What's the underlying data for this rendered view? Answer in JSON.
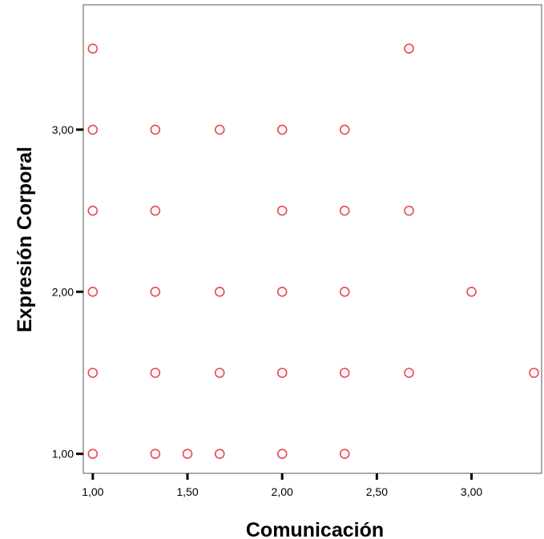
{
  "chart_data": {
    "type": "scatter",
    "xlabel": "Comunicación",
    "ylabel": "Expresión Corporal",
    "xlim": [
      0.95,
      3.37
    ],
    "ylim": [
      0.88,
      3.77
    ],
    "x_ticks": [
      {
        "value": 1.0,
        "label": "1,00"
      },
      {
        "value": 1.5,
        "label": "1,50"
      },
      {
        "value": 2.0,
        "label": "2,00"
      },
      {
        "value": 2.5,
        "label": "2,50"
      },
      {
        "value": 3.0,
        "label": "3,00"
      }
    ],
    "y_ticks": [
      {
        "value": 1.0,
        "label": "1,00"
      },
      {
        "value": 2.0,
        "label": "2,00"
      },
      {
        "value": 3.0,
        "label": "3,00"
      }
    ],
    "grid": false,
    "legend": "none",
    "marker_color": "#e8484f",
    "points": [
      {
        "x": 1.0,
        "y": 3.5
      },
      {
        "x": 2.67,
        "y": 3.5
      },
      {
        "x": 1.0,
        "y": 3.0
      },
      {
        "x": 1.33,
        "y": 3.0
      },
      {
        "x": 1.67,
        "y": 3.0
      },
      {
        "x": 2.0,
        "y": 3.0
      },
      {
        "x": 2.33,
        "y": 3.0
      },
      {
        "x": 1.0,
        "y": 2.5
      },
      {
        "x": 1.33,
        "y": 2.5
      },
      {
        "x": 2.0,
        "y": 2.5
      },
      {
        "x": 2.33,
        "y": 2.5
      },
      {
        "x": 2.67,
        "y": 2.5
      },
      {
        "x": 1.0,
        "y": 2.0
      },
      {
        "x": 1.33,
        "y": 2.0
      },
      {
        "x": 1.67,
        "y": 2.0
      },
      {
        "x": 2.0,
        "y": 2.0
      },
      {
        "x": 2.33,
        "y": 2.0
      },
      {
        "x": 3.0,
        "y": 2.0
      },
      {
        "x": 1.0,
        "y": 1.5
      },
      {
        "x": 1.33,
        "y": 1.5
      },
      {
        "x": 1.67,
        "y": 1.5
      },
      {
        "x": 2.0,
        "y": 1.5
      },
      {
        "x": 2.33,
        "y": 1.5
      },
      {
        "x": 2.67,
        "y": 1.5
      },
      {
        "x": 3.33,
        "y": 1.5
      },
      {
        "x": 1.0,
        "y": 1.0
      },
      {
        "x": 1.33,
        "y": 1.0
      },
      {
        "x": 1.5,
        "y": 1.0
      },
      {
        "x": 1.67,
        "y": 1.0
      },
      {
        "x": 2.0,
        "y": 1.0
      },
      {
        "x": 2.33,
        "y": 1.0
      }
    ]
  }
}
